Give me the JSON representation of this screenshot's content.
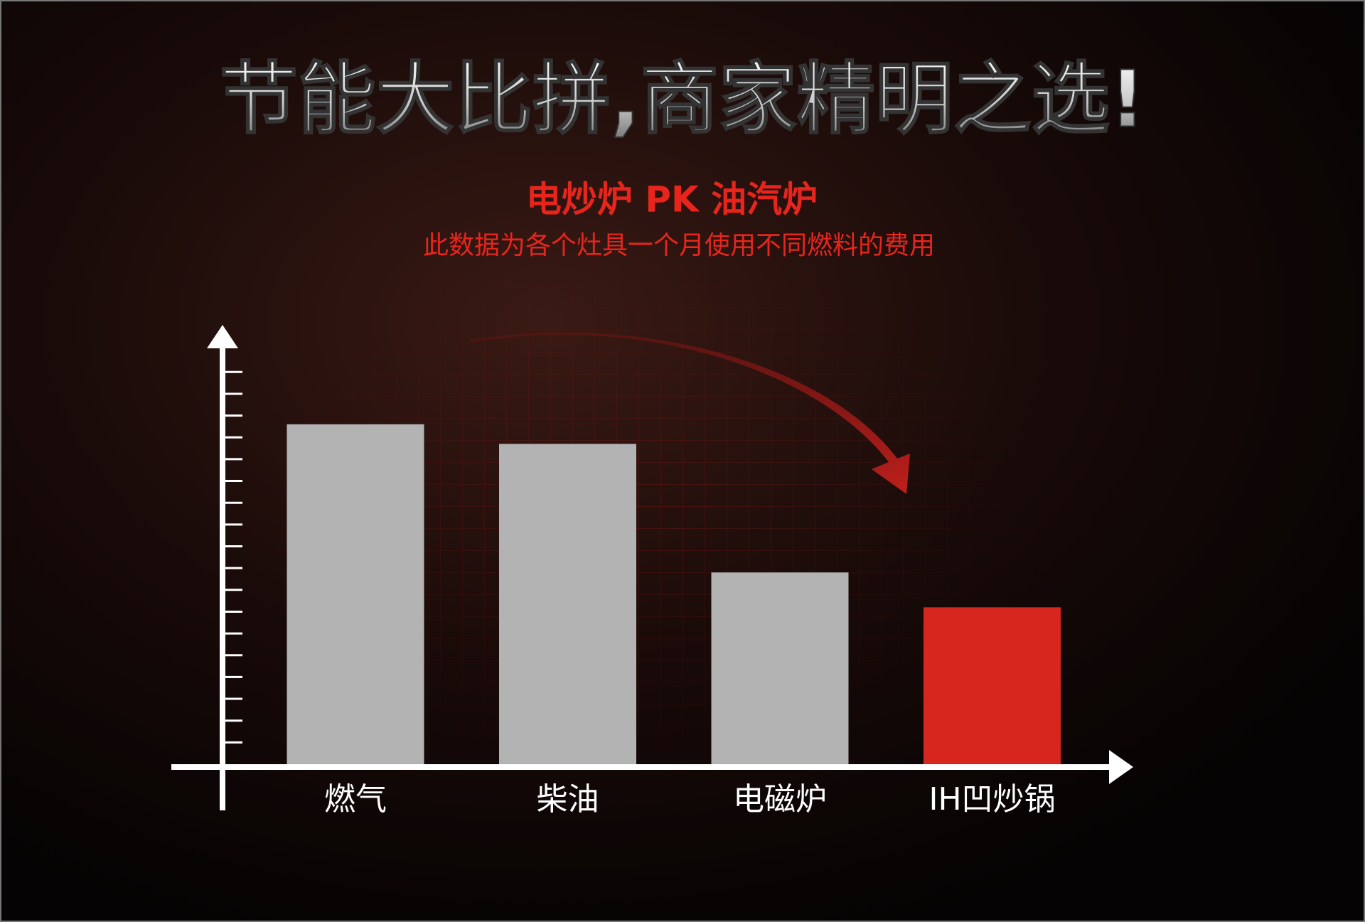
{
  "chart_data": {
    "type": "bar",
    "title": "节能大比拼,商家精明之选!",
    "subtitle": "电炒炉 PK 油汽炉",
    "note": "此数据为各个灶具一个月使用不同燃料的费用",
    "categories": [
      "燃气",
      "柴油",
      "电磁炉",
      "IH凹炒锅"
    ],
    "values": [
      15.6,
      14.7,
      8.8,
      7.2
    ],
    "colors": [
      "#b3b3b3",
      "#b3b3b3",
      "#b3b3b3",
      "#d7261e"
    ],
    "ylim": [
      0,
      20
    ],
    "yticks": [
      1,
      2,
      3,
      4,
      5,
      6,
      7,
      8,
      9,
      10,
      11,
      12,
      13,
      14,
      15,
      16,
      17,
      18
    ]
  }
}
